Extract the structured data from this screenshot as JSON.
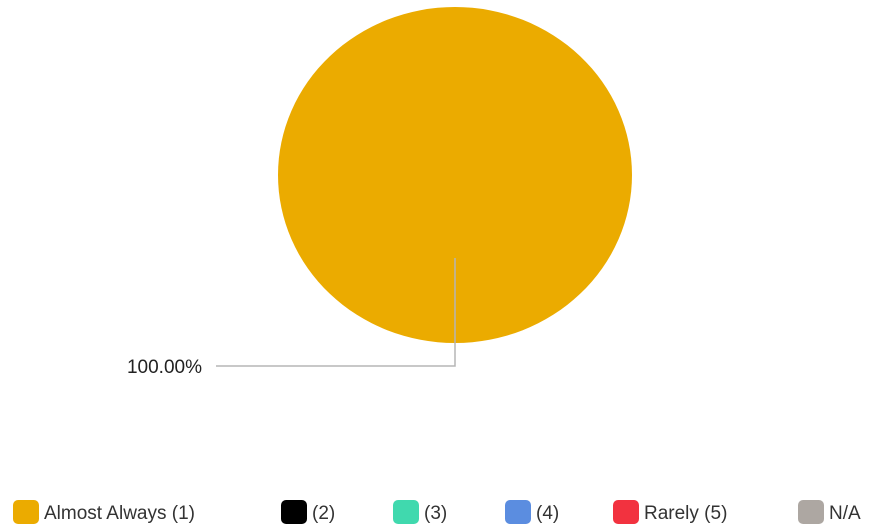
{
  "chart_data": {
    "type": "pie",
    "title": "",
    "categories": [
      "Almost Always (1)",
      "(2)",
      "(3)",
      "(4)",
      "Rarely (5)",
      "N/A"
    ],
    "values": [
      100,
      0,
      0,
      0,
      0,
      0
    ],
    "colors": [
      "#EBAB00",
      "#000000",
      "#40D9AE",
      "#5B8DE0",
      "#F2323F",
      "#ADA7A2"
    ],
    "data_labels": [
      "100.00%",
      "",
      "",
      "",
      "",
      ""
    ],
    "legend_position": "bottom",
    "unit": "%"
  }
}
